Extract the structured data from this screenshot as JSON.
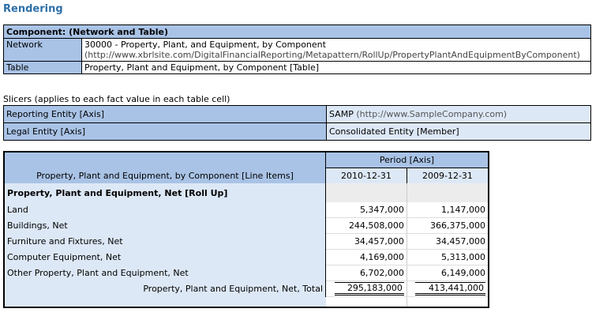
{
  "title": "Rendering",
  "component": {
    "header": "Component: (Network and Table)",
    "network_label": "Network",
    "network_value": "30000 - Property, Plant, and Equipment, by Component",
    "network_url": "(http://www.xbrlsite.com/DigitalFinancialReporting/Metapattern/RollUp/PropertyPlantAndEquipmentByComponent)",
    "table_label": "Table",
    "table_value": "Property, Plant and Equipment, by Component [Table]"
  },
  "slicers": {
    "caption": "Slicers (applies to each fact value in each table cell)",
    "rows": [
      {
        "label": "Reporting Entity [Axis]",
        "value": "SAMP",
        "sub": "(http://www.SampleCompany.com)"
      },
      {
        "label": "Legal Entity [Axis]",
        "value": "Consolidated Entity [Member]",
        "sub": ""
      }
    ]
  },
  "facts": {
    "line_items_header": "Property, Plant and Equipment, by Component [Line Items]",
    "period_header": "Period [Axis]",
    "dates": [
      "2010-12-31",
      "2009-12-31"
    ],
    "rollup_label": "Property, Plant and Equipment, Net [Roll Up]",
    "rows": [
      {
        "label": "Land",
        "values": [
          "5,347,000",
          "1,147,000"
        ]
      },
      {
        "label": "Buildings, Net",
        "values": [
          "244,508,000",
          "366,375,000"
        ]
      },
      {
        "label": "Furniture and Fixtures, Net",
        "values": [
          "34,457,000",
          "34,457,000"
        ]
      },
      {
        "label": "Computer Equipment, Net",
        "values": [
          "4,169,000",
          "5,313,000"
        ]
      },
      {
        "label": "Other Property, Plant and Equipment, Net",
        "values": [
          "6,702,000",
          "6,149,000"
        ]
      }
    ],
    "total_label": "Property, Plant and Equipment, Net, Total",
    "total_values": [
      "295,183,000",
      "413,441,000"
    ]
  }
}
